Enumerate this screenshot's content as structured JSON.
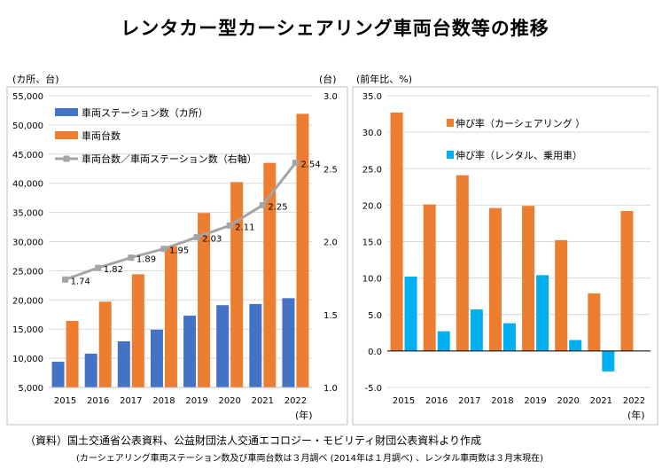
{
  "title": "レンタカー型カーシェアリング車両台数等の推移",
  "footnote": {
    "source": "（資料）国土交通省公表資料、公益財団法人交通エコロジー・モビリティ財団公表資料より作成",
    "note": "(カーシェアリング車両ステーション数及び車両台数は３月調べ (2014年は１月調べ) 、レンタル車両数は３月末現在)"
  },
  "colors": {
    "blue": "#4472C4",
    "orange": "#ED7D31",
    "cyan": "#00B0F0",
    "gray": "#A5A5A5",
    "grid": "#D9D9D9"
  },
  "chart_data": [
    {
      "type": "bar",
      "left_unit": "(カ所、台)",
      "right_unit": "(台)",
      "xlabel": "(年)",
      "categories": [
        "2015",
        "2016",
        "2017",
        "2018",
        "2019",
        "2020",
        "2021",
        "2022"
      ],
      "ylim": [
        5000,
        55000
      ],
      "yticks": [
        "5,000",
        "10,000",
        "15,000",
        "20,000",
        "25,000",
        "30,000",
        "35,000",
        "40,000",
        "45,000",
        "50,000",
        "55,000"
      ],
      "y2lim": [
        1.0,
        3.0
      ],
      "y2ticks": [
        "1.0",
        "1.5",
        "2.0",
        "2.5",
        "3.0"
      ],
      "series": [
        {
          "name": "車両ステーション数（カ所）",
          "kind": "bar",
          "axis": "left",
          "color": "#4472C4",
          "values": [
            9400,
            10800,
            12900,
            14900,
            17300,
            19100,
            19300,
            20300
          ]
        },
        {
          "name": "車両台数",
          "kind": "bar",
          "axis": "left",
          "color": "#ED7D31",
          "values": [
            16400,
            19700,
            24400,
            29200,
            34900,
            40200,
            43500,
            51900
          ]
        },
        {
          "name": "車両台数／車両ステーション数（右軸）",
          "kind": "line",
          "axis": "right",
          "color": "#A5A5A5",
          "values": [
            1.74,
            1.82,
            1.89,
            1.95,
            2.03,
            2.11,
            2.25,
            2.54
          ],
          "labels": [
            "1.74",
            "1.82",
            "1.89",
            "1.95",
            "2.03",
            "2.11",
            "2.25",
            "2.54"
          ]
        }
      ]
    },
    {
      "type": "bar",
      "unit": "(前年比、%)",
      "xlabel": "(年)",
      "categories": [
        "2015",
        "2016",
        "2017",
        "2018",
        "2019",
        "2020",
        "2021",
        "2022"
      ],
      "ylim": [
        -5,
        35
      ],
      "yticks": [
        "-5.0",
        "0.0",
        "5.0",
        "10.0",
        "15.0",
        "20.0",
        "25.0",
        "30.0",
        "35.0"
      ],
      "series": [
        {
          "name": "伸び率（カーシェアリング ）",
          "color": "#ED7D31",
          "values": [
            32.7,
            20.1,
            24.1,
            19.6,
            19.9,
            15.2,
            7.9,
            19.2
          ]
        },
        {
          "name": "伸び率（レンタル、乗用車）",
          "color": "#00B0F0",
          "values": [
            10.2,
            2.7,
            5.7,
            3.8,
            10.4,
            1.5,
            -2.8,
            null
          ]
        }
      ]
    }
  ]
}
